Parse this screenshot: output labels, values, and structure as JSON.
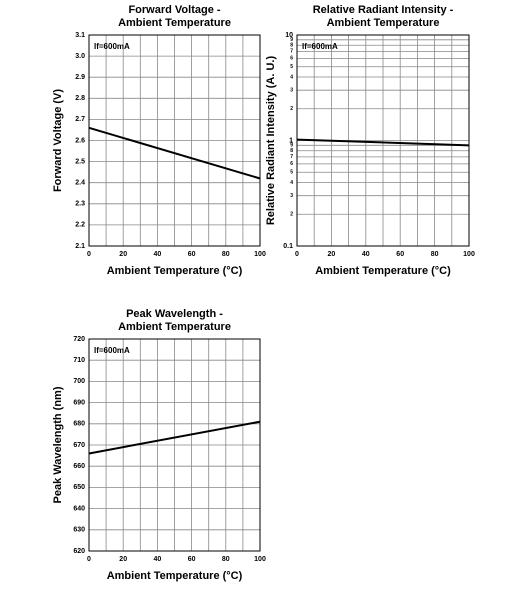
{
  "chart_data": [
    {
      "type": "line",
      "title": [
        "Forward Voltage -",
        "Ambient Temperature"
      ],
      "annotation": "If=600mA",
      "xlabel": "Ambient Temperature (°C)",
      "ylabel": "Forward Voltage (V)",
      "x": [
        0,
        100
      ],
      "series": [
        {
          "color": "#000000",
          "values": [
            2.66,
            2.42
          ]
        }
      ],
      "xlim": [
        0,
        100
      ],
      "ylim": [
        2.1,
        3.1
      ],
      "xticks": [
        0,
        20,
        40,
        60,
        80,
        100
      ],
      "yticks": [
        2.1,
        2.2,
        2.3,
        2.4,
        2.5,
        2.6,
        2.7,
        2.8,
        2.9,
        {
          "value": 3,
          "label": "3.0"
        },
        3.1
      ],
      "grid": true
    },
    {
      "type": "line",
      "title": [
        "Relative Radiant Intensity -",
        "Ambient Temperature"
      ],
      "annotation": "If=600mA",
      "xlabel": "Ambient Temperature (°C)",
      "ylabel": "Relative Radiant Intensity (A. U.)",
      "x": [
        0,
        100
      ],
      "series": [
        {
          "color": "#000000",
          "values": [
            1.02,
            0.9
          ]
        }
      ],
      "xlim": [
        0,
        100
      ],
      "ylim": [
        0.1,
        10
      ],
      "yscale": "log",
      "xticks": [
        0,
        20,
        40,
        60,
        80,
        100
      ],
      "yticks": [
        0.1,
        {
          "value": 0.2,
          "label": "2"
        },
        {
          "value": 0.3,
          "label": "3"
        },
        {
          "value": 0.4,
          "label": "4"
        },
        {
          "value": 0.5,
          "label": "5"
        },
        {
          "value": 0.6,
          "label": "6"
        },
        {
          "value": 0.7,
          "label": "7"
        },
        {
          "value": 0.8,
          "label": "8"
        },
        {
          "value": 0.9,
          "label": "9"
        },
        1,
        2,
        3,
        4,
        5,
        6,
        7,
        8,
        9,
        10
      ],
      "grid": true
    },
    {
      "type": "line",
      "title": [
        "Peak Wavelength -",
        "Ambient Temperature"
      ],
      "annotation": "If=600mA",
      "xlabel": "Ambient Temperature (°C)",
      "ylabel": "Peak Wavelength (nm)",
      "x": [
        0,
        100
      ],
      "series": [
        {
          "color": "#000000",
          "values": [
            666,
            681
          ]
        }
      ],
      "xlim": [
        0,
        100
      ],
      "ylim": [
        620,
        720
      ],
      "xticks": [
        0,
        20,
        40,
        60,
        80,
        100
      ],
      "yticks": [
        620,
        630,
        640,
        650,
        660,
        670,
        680,
        690,
        700,
        710,
        720
      ],
      "grid": true
    }
  ]
}
